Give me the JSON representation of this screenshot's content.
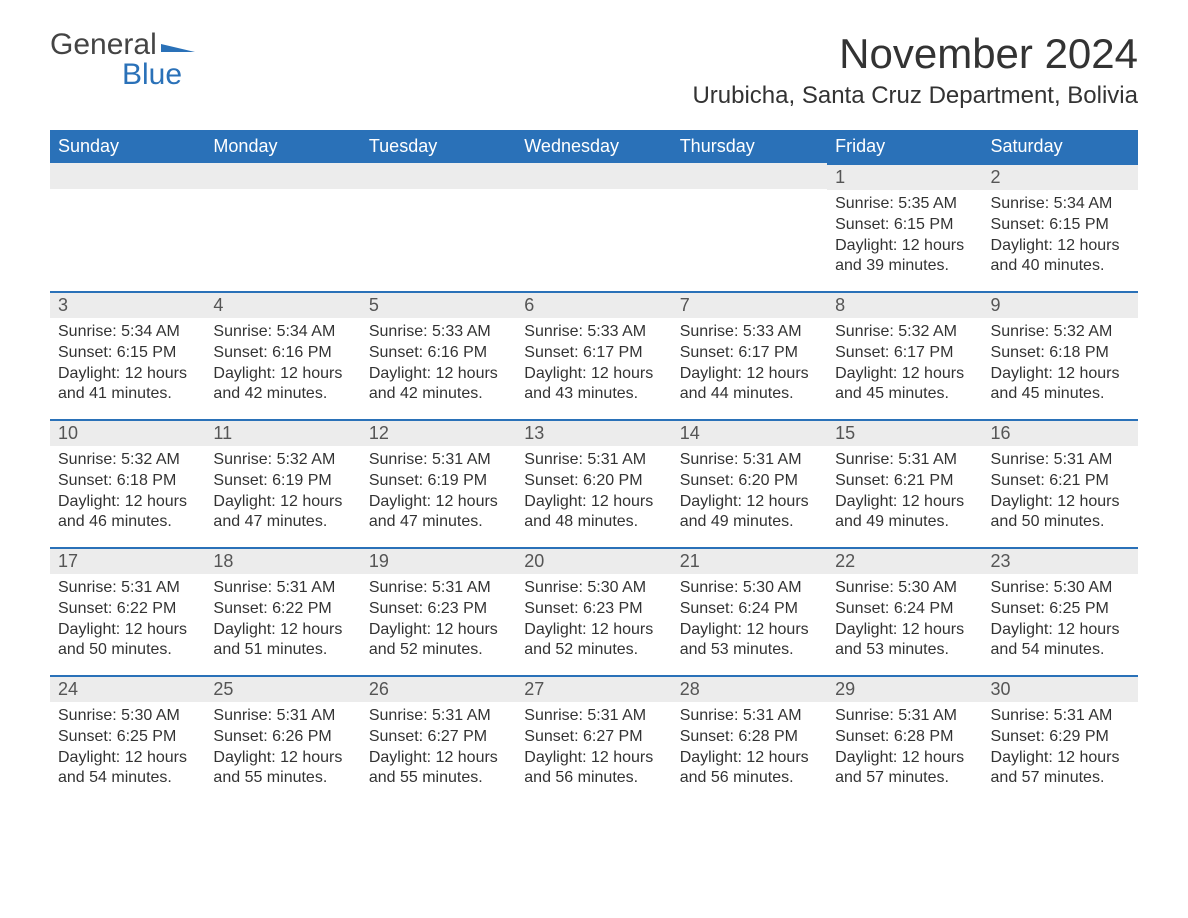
{
  "logo": {
    "word1": "General",
    "word2": "Blue"
  },
  "title": "November 2024",
  "location": "Urubicha, Santa Cruz Department, Bolivia",
  "colors": {
    "header_bg": "#2a71b8",
    "header_text": "#ffffff",
    "daynum_bg": "#ececec",
    "row_border": "#2a71b8",
    "body_text": "#333333",
    "page_bg": "#ffffff"
  },
  "typography": {
    "title_fontsize": 42,
    "location_fontsize": 24,
    "dayheader_fontsize": 18,
    "daynum_fontsize": 18,
    "body_fontsize": 16,
    "font_family": "Arial"
  },
  "dayHeaders": [
    "Sunday",
    "Monday",
    "Tuesday",
    "Wednesday",
    "Thursday",
    "Friday",
    "Saturday"
  ],
  "labels": {
    "sunrise": "Sunrise:",
    "sunset": "Sunset:",
    "daylight": "Daylight:"
  },
  "weeks": [
    [
      null,
      null,
      null,
      null,
      null,
      {
        "n": "1",
        "sunrise": "5:35 AM",
        "sunset": "6:15 PM",
        "daylight": "12 hours and 39 minutes."
      },
      {
        "n": "2",
        "sunrise": "5:34 AM",
        "sunset": "6:15 PM",
        "daylight": "12 hours and 40 minutes."
      }
    ],
    [
      {
        "n": "3",
        "sunrise": "5:34 AM",
        "sunset": "6:15 PM",
        "daylight": "12 hours and 41 minutes."
      },
      {
        "n": "4",
        "sunrise": "5:34 AM",
        "sunset": "6:16 PM",
        "daylight": "12 hours and 42 minutes."
      },
      {
        "n": "5",
        "sunrise": "5:33 AM",
        "sunset": "6:16 PM",
        "daylight": "12 hours and 42 minutes."
      },
      {
        "n": "6",
        "sunrise": "5:33 AM",
        "sunset": "6:17 PM",
        "daylight": "12 hours and 43 minutes."
      },
      {
        "n": "7",
        "sunrise": "5:33 AM",
        "sunset": "6:17 PM",
        "daylight": "12 hours and 44 minutes."
      },
      {
        "n": "8",
        "sunrise": "5:32 AM",
        "sunset": "6:17 PM",
        "daylight": "12 hours and 45 minutes."
      },
      {
        "n": "9",
        "sunrise": "5:32 AM",
        "sunset": "6:18 PM",
        "daylight": "12 hours and 45 minutes."
      }
    ],
    [
      {
        "n": "10",
        "sunrise": "5:32 AM",
        "sunset": "6:18 PM",
        "daylight": "12 hours and 46 minutes."
      },
      {
        "n": "11",
        "sunrise": "5:32 AM",
        "sunset": "6:19 PM",
        "daylight": "12 hours and 47 minutes."
      },
      {
        "n": "12",
        "sunrise": "5:31 AM",
        "sunset": "6:19 PM",
        "daylight": "12 hours and 47 minutes."
      },
      {
        "n": "13",
        "sunrise": "5:31 AM",
        "sunset": "6:20 PM",
        "daylight": "12 hours and 48 minutes."
      },
      {
        "n": "14",
        "sunrise": "5:31 AM",
        "sunset": "6:20 PM",
        "daylight": "12 hours and 49 minutes."
      },
      {
        "n": "15",
        "sunrise": "5:31 AM",
        "sunset": "6:21 PM",
        "daylight": "12 hours and 49 minutes."
      },
      {
        "n": "16",
        "sunrise": "5:31 AM",
        "sunset": "6:21 PM",
        "daylight": "12 hours and 50 minutes."
      }
    ],
    [
      {
        "n": "17",
        "sunrise": "5:31 AM",
        "sunset": "6:22 PM",
        "daylight": "12 hours and 50 minutes."
      },
      {
        "n": "18",
        "sunrise": "5:31 AM",
        "sunset": "6:22 PM",
        "daylight": "12 hours and 51 minutes."
      },
      {
        "n": "19",
        "sunrise": "5:31 AM",
        "sunset": "6:23 PM",
        "daylight": "12 hours and 52 minutes."
      },
      {
        "n": "20",
        "sunrise": "5:30 AM",
        "sunset": "6:23 PM",
        "daylight": "12 hours and 52 minutes."
      },
      {
        "n": "21",
        "sunrise": "5:30 AM",
        "sunset": "6:24 PM",
        "daylight": "12 hours and 53 minutes."
      },
      {
        "n": "22",
        "sunrise": "5:30 AM",
        "sunset": "6:24 PM",
        "daylight": "12 hours and 53 minutes."
      },
      {
        "n": "23",
        "sunrise": "5:30 AM",
        "sunset": "6:25 PM",
        "daylight": "12 hours and 54 minutes."
      }
    ],
    [
      {
        "n": "24",
        "sunrise": "5:30 AM",
        "sunset": "6:25 PM",
        "daylight": "12 hours and 54 minutes."
      },
      {
        "n": "25",
        "sunrise": "5:31 AM",
        "sunset": "6:26 PM",
        "daylight": "12 hours and 55 minutes."
      },
      {
        "n": "26",
        "sunrise": "5:31 AM",
        "sunset": "6:27 PM",
        "daylight": "12 hours and 55 minutes."
      },
      {
        "n": "27",
        "sunrise": "5:31 AM",
        "sunset": "6:27 PM",
        "daylight": "12 hours and 56 minutes."
      },
      {
        "n": "28",
        "sunrise": "5:31 AM",
        "sunset": "6:28 PM",
        "daylight": "12 hours and 56 minutes."
      },
      {
        "n": "29",
        "sunrise": "5:31 AM",
        "sunset": "6:28 PM",
        "daylight": "12 hours and 57 minutes."
      },
      {
        "n": "30",
        "sunrise": "5:31 AM",
        "sunset": "6:29 PM",
        "daylight": "12 hours and 57 minutes."
      }
    ]
  ]
}
